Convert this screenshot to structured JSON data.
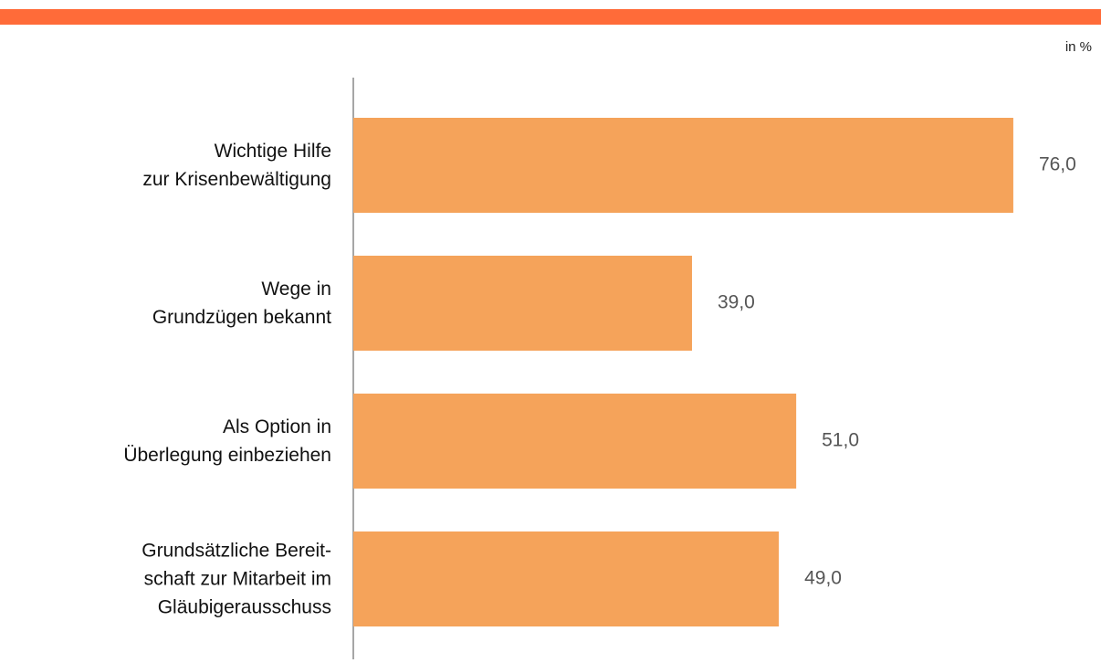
{
  "chart_data": {
    "type": "barh",
    "unit_label": "in %",
    "categories": [
      "Wichtige Hilfe\nzur Krisenbewältigung",
      "Wege in\nGrundzügen bekannt",
      "Als Option in\nÜberlegung einbeziehen",
      "Grundsätzliche Bereit-\nschaft zur Mitarbeit im\nGläubigerausschuss"
    ],
    "values": [
      76,
      39,
      51,
      49
    ],
    "value_labels": [
      "76,0",
      "39,0",
      "51,0",
      "49,0"
    ],
    "color": "#f5a35a",
    "header_color": "#ff6b39",
    "xlim": [
      0,
      80
    ]
  }
}
